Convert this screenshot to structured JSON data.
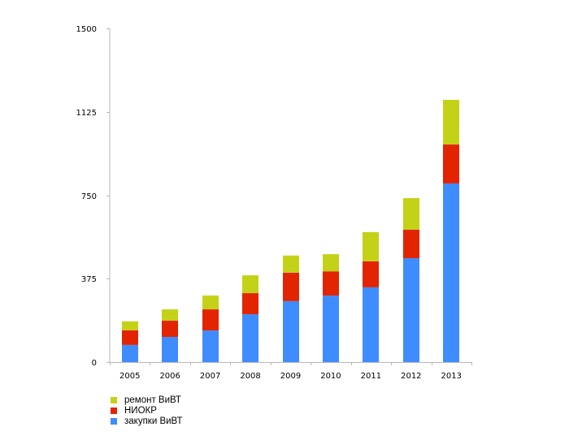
{
  "chart_data": {
    "type": "bar",
    "stacked": true,
    "title": "",
    "xlabel": "",
    "ylabel": "",
    "categories": [
      "2005",
      "2006",
      "2007",
      "2008",
      "2009",
      "2010",
      "2011",
      "2012",
      "2013"
    ],
    "ylim": [
      0,
      1500
    ],
    "yticks": [
      0,
      375,
      750,
      1125,
      1500
    ],
    "ytick_labels": [
      "0",
      "375",
      "750",
      "1125",
      "1500"
    ],
    "grid": false,
    "legend_position": "bottom-left",
    "series": [
      {
        "name": "закупки ВиВТ",
        "color": "#3f8cff",
        "values": [
          77,
          113,
          142,
          215,
          274,
          299,
          336,
          467,
          803
        ]
      },
      {
        "name": "НИОКР",
        "color": "#e32400",
        "values": [
          66,
          73,
          95,
          95,
          128,
          109,
          117,
          128,
          175
        ]
      },
      {
        "name": "ремонт ВиВТ",
        "color": "#c4d217",
        "values": [
          40,
          51,
          62,
          80,
          77,
          77,
          131,
          142,
          201
        ]
      }
    ],
    "legend_order": [
      2,
      1,
      0
    ]
  }
}
